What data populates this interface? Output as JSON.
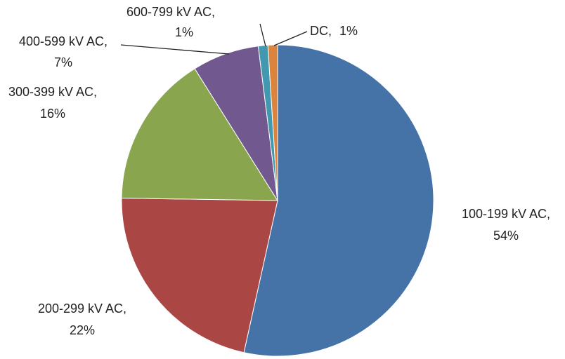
{
  "chart_data": {
    "type": "pie",
    "categories": [
      "100-199 kV AC,",
      "200-299 kV AC,",
      "300-399 kV AC,",
      "400-599 kV AC,",
      "600-799 kV AC,",
      "DC,"
    ],
    "values": [
      54,
      22,
      16,
      7,
      1,
      1
    ],
    "value_labels": [
      "54%",
      "22%",
      "16%",
      "7%",
      "1%",
      "1%"
    ],
    "colors": [
      "#4572a7",
      "#aa4643",
      "#89a54e",
      "#71588f",
      "#4198af",
      "#db843d"
    ]
  }
}
